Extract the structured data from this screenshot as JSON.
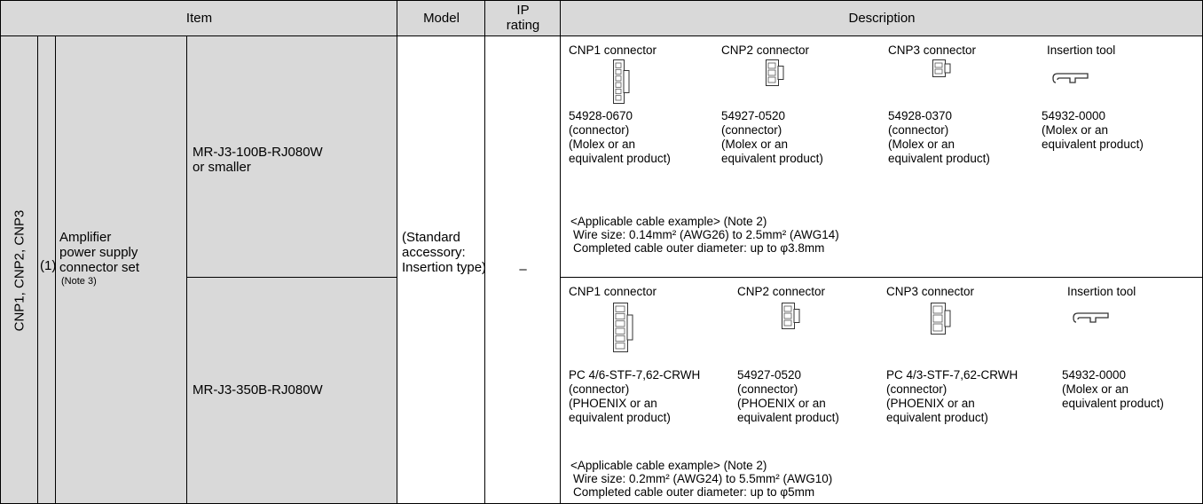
{
  "header": {
    "item": "Item",
    "model": "Model",
    "ip_rating": [
      "IP",
      "rating"
    ],
    "description": "Description"
  },
  "row": {
    "group": "CNP1, CNP2, CNP3",
    "number": "(1)",
    "name": [
      "Amplifier",
      "power supply",
      "connector set"
    ],
    "note": "(Note 3)",
    "model": [
      "(Standard",
      "accessory:",
      "Insertion type)"
    ],
    "ip_rating": "–",
    "variants": [
      {
        "applicable": [
          "MR-J3-100B-RJ080W",
          "or smaller"
        ],
        "parts": [
          {
            "title": "CNP1 connector",
            "lines": [
              "54928-0670",
              "(connector)",
              "(Molex or an",
              "equivalent product)"
            ]
          },
          {
            "title": "CNP2 connector",
            "lines": [
              "54927-0520",
              "(connector)",
              "(Molex or an",
              "equivalent product)"
            ]
          },
          {
            "title": "CNP3 connector",
            "lines": [
              "54928-0370",
              "(connector)",
              "(Molex or an",
              "equivalent product)"
            ]
          },
          {
            "title": "Insertion tool",
            "lines": [
              "54932-0000",
              "(Molex or an",
              "equivalent product)"
            ]
          }
        ],
        "cable": [
          "<Applicable cable example> (Note 2)",
          "Wire size: 0.14mm² (AWG26) to 2.5mm² (AWG14)",
          "Completed cable outer diameter: up to φ3.8mm"
        ]
      },
      {
        "applicable": [
          "MR-J3-350B-RJ080W"
        ],
        "parts": [
          {
            "title": "CNP1 connector",
            "lines": [
              "PC 4/6-STF-7,62-CRWH",
              "(connector)",
              "(PHOENIX or an",
              "equivalent product)"
            ]
          },
          {
            "title": "CNP2 connector",
            "lines": [
              "54927-0520",
              "(connector)",
              "(PHOENIX or an",
              "equivalent product)"
            ]
          },
          {
            "title": "CNP3 connector",
            "lines": [
              "PC 4/3-STF-7,62-CRWH",
              "(connector)",
              "(PHOENIX or an",
              "equivalent product)"
            ]
          },
          {
            "title": "Insertion tool",
            "lines": [
              "54932-0000",
              "(Molex or an",
              "equivalent product)"
            ]
          }
        ],
        "cable": [
          "<Applicable cable example> (Note 2)",
          "Wire size: 0.2mm² (AWG24) to 5.5mm² (AWG10)",
          "Completed cable outer diameter: up to φ5mm"
        ]
      }
    ]
  }
}
